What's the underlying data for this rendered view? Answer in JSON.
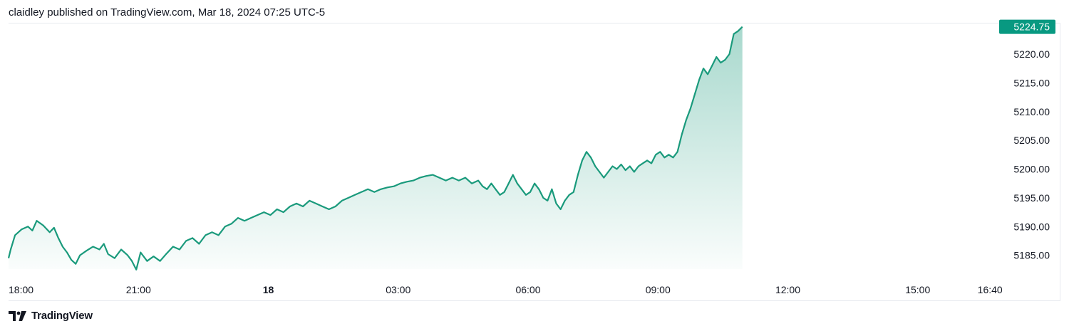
{
  "header": {
    "published_text": "claidley published on TradingView.com, Mar 18, 2024 07:25 UTC-5"
  },
  "footer": {
    "brand": "TradingView",
    "logo_icon": "tradingview-logo-icon"
  },
  "colors": {
    "line": "#1a9a7c",
    "fill_top": "#1a9a7c",
    "badge": "#089981",
    "text": "#131722",
    "grid_border": "#e8eaef"
  },
  "chart_data": {
    "type": "area",
    "title": "",
    "xlabel": "",
    "ylabel": "",
    "current_price": "5224.75",
    "ylim": [
      5182.5,
      5226
    ],
    "y_ticks": [
      "5220.00",
      "5215.00",
      "5210.00",
      "5205.00",
      "5200.00",
      "5195.00",
      "5190.00",
      "5185.00"
    ],
    "x_ticks": [
      {
        "label": "18:00",
        "hours": 0
      },
      {
        "label": "21:00",
        "hours": 3
      },
      {
        "label": "18",
        "hours": 6,
        "bold": true
      },
      {
        "label": "03:00",
        "hours": 9
      },
      {
        "label": "06:00",
        "hours": 12
      },
      {
        "label": "09:00",
        "hours": 15
      },
      {
        "label": "12:00",
        "hours": 18
      },
      {
        "label": "15:00",
        "hours": 21
      },
      {
        "label": "16:40",
        "hours": 22.67
      }
    ],
    "series": [
      {
        "points": [
          [
            0.0,
            5184.5
          ],
          [
            0.05,
            5186.0
          ],
          [
            0.15,
            5188.5
          ],
          [
            0.3,
            5189.5
          ],
          [
            0.45,
            5190.0
          ],
          [
            0.55,
            5189.3
          ],
          [
            0.65,
            5191.0
          ],
          [
            0.8,
            5190.2
          ],
          [
            0.95,
            5189.0
          ],
          [
            1.05,
            5189.8
          ],
          [
            1.15,
            5188.0
          ],
          [
            1.25,
            5186.5
          ],
          [
            1.35,
            5185.5
          ],
          [
            1.45,
            5184.2
          ],
          [
            1.55,
            5183.5
          ],
          [
            1.65,
            5185.0
          ],
          [
            1.8,
            5185.8
          ],
          [
            1.95,
            5186.5
          ],
          [
            2.1,
            5186.0
          ],
          [
            2.2,
            5187.0
          ],
          [
            2.3,
            5185.2
          ],
          [
            2.45,
            5184.5
          ],
          [
            2.6,
            5186.0
          ],
          [
            2.75,
            5185.0
          ],
          [
            2.85,
            5184.0
          ],
          [
            2.95,
            5182.5
          ],
          [
            3.05,
            5185.5
          ],
          [
            3.2,
            5184.0
          ],
          [
            3.35,
            5184.8
          ],
          [
            3.5,
            5184.0
          ],
          [
            3.65,
            5185.3
          ],
          [
            3.8,
            5186.5
          ],
          [
            3.95,
            5186.0
          ],
          [
            4.1,
            5187.5
          ],
          [
            4.25,
            5188.0
          ],
          [
            4.4,
            5187.0
          ],
          [
            4.55,
            5188.5
          ],
          [
            4.7,
            5189.0
          ],
          [
            4.85,
            5188.5
          ],
          [
            5.0,
            5190.0
          ],
          [
            5.15,
            5190.5
          ],
          [
            5.3,
            5191.5
          ],
          [
            5.45,
            5191.0
          ],
          [
            5.6,
            5191.5
          ],
          [
            5.75,
            5192.0
          ],
          [
            5.9,
            5192.5
          ],
          [
            6.05,
            5192.0
          ],
          [
            6.2,
            5193.0
          ],
          [
            6.35,
            5192.5
          ],
          [
            6.5,
            5193.5
          ],
          [
            6.65,
            5194.0
          ],
          [
            6.8,
            5193.5
          ],
          [
            6.95,
            5194.5
          ],
          [
            7.1,
            5194.0
          ],
          [
            7.25,
            5193.5
          ],
          [
            7.4,
            5193.0
          ],
          [
            7.55,
            5193.5
          ],
          [
            7.7,
            5194.5
          ],
          [
            7.85,
            5195.0
          ],
          [
            8.0,
            5195.5
          ],
          [
            8.15,
            5196.0
          ],
          [
            8.3,
            5196.5
          ],
          [
            8.45,
            5196.0
          ],
          [
            8.6,
            5196.5
          ],
          [
            8.75,
            5196.8
          ],
          [
            8.9,
            5197.0
          ],
          [
            9.05,
            5197.5
          ],
          [
            9.2,
            5197.8
          ],
          [
            9.35,
            5198.0
          ],
          [
            9.5,
            5198.5
          ],
          [
            9.65,
            5198.8
          ],
          [
            9.8,
            5199.0
          ],
          [
            9.95,
            5198.5
          ],
          [
            10.1,
            5198.0
          ],
          [
            10.25,
            5198.5
          ],
          [
            10.4,
            5198.0
          ],
          [
            10.55,
            5198.5
          ],
          [
            10.7,
            5197.5
          ],
          [
            10.85,
            5198.0
          ],
          [
            10.95,
            5197.0
          ],
          [
            11.05,
            5196.5
          ],
          [
            11.15,
            5197.5
          ],
          [
            11.25,
            5196.5
          ],
          [
            11.35,
            5195.5
          ],
          [
            11.45,
            5196.0
          ],
          [
            11.55,
            5197.5
          ],
          [
            11.65,
            5199.0
          ],
          [
            11.75,
            5197.5
          ],
          [
            11.85,
            5196.5
          ],
          [
            11.95,
            5195.5
          ],
          [
            12.05,
            5196.0
          ],
          [
            12.15,
            5197.5
          ],
          [
            12.25,
            5196.5
          ],
          [
            12.35,
            5195.0
          ],
          [
            12.45,
            5194.5
          ],
          [
            12.55,
            5196.5
          ],
          [
            12.65,
            5194.0
          ],
          [
            12.75,
            5193.0
          ],
          [
            12.85,
            5194.5
          ],
          [
            12.95,
            5195.5
          ],
          [
            13.05,
            5196.0
          ],
          [
            13.15,
            5199.0
          ],
          [
            13.25,
            5201.5
          ],
          [
            13.35,
            5203.0
          ],
          [
            13.45,
            5202.0
          ],
          [
            13.55,
            5200.5
          ],
          [
            13.65,
            5199.5
          ],
          [
            13.75,
            5198.5
          ],
          [
            13.85,
            5199.5
          ],
          [
            13.95,
            5200.5
          ],
          [
            14.05,
            5200.0
          ],
          [
            14.15,
            5200.8
          ],
          [
            14.25,
            5199.8
          ],
          [
            14.35,
            5200.5
          ],
          [
            14.45,
            5199.5
          ],
          [
            14.55,
            5200.5
          ],
          [
            14.65,
            5201.0
          ],
          [
            14.75,
            5201.5
          ],
          [
            14.85,
            5201.0
          ],
          [
            14.95,
            5202.5
          ],
          [
            15.05,
            5203.0
          ],
          [
            15.15,
            5202.0
          ],
          [
            15.25,
            5202.5
          ],
          [
            15.35,
            5202.0
          ],
          [
            15.45,
            5203.0
          ],
          [
            15.55,
            5206.0
          ],
          [
            15.65,
            5208.5
          ],
          [
            15.75,
            5210.5
          ],
          [
            15.85,
            5213.0
          ],
          [
            15.95,
            5215.5
          ],
          [
            16.05,
            5217.5
          ],
          [
            16.15,
            5216.5
          ],
          [
            16.25,
            5218.0
          ],
          [
            16.35,
            5219.5
          ],
          [
            16.45,
            5218.5
          ],
          [
            16.55,
            5219.0
          ],
          [
            16.65,
            5220.0
          ],
          [
            16.75,
            5223.5
          ],
          [
            16.85,
            5224.0
          ],
          [
            16.95,
            5224.75
          ]
        ]
      }
    ]
  }
}
